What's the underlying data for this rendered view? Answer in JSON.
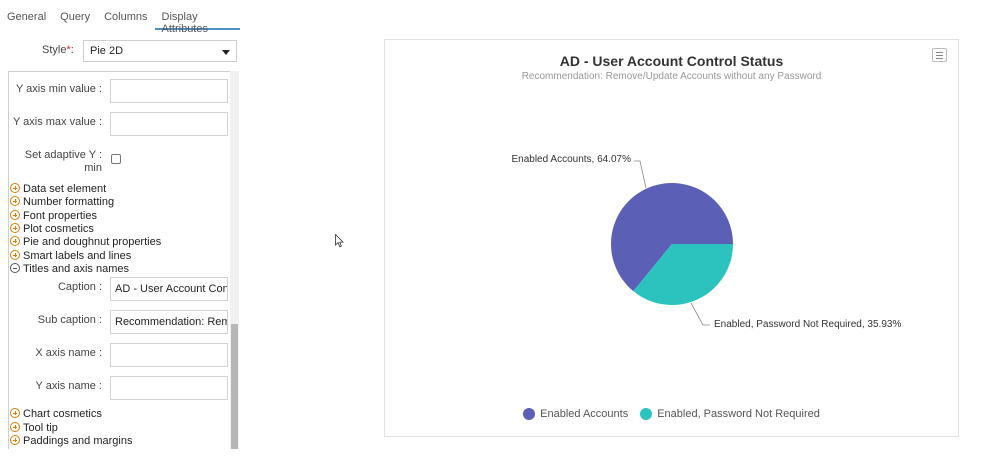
{
  "tabs": [
    {
      "label": "General",
      "active": false
    },
    {
      "label": "Query",
      "active": false
    },
    {
      "label": "Columns",
      "active": false
    },
    {
      "label": "Display Attributes",
      "active": true
    }
  ],
  "style": {
    "label": "Style",
    "required_mark": "*",
    "value": "Pie 2D"
  },
  "fields": {
    "y_min": {
      "label": "Y axis min value :",
      "value": ""
    },
    "y_max": {
      "label": "Y axis max value :",
      "value": ""
    },
    "adaptive_label_1": "Set adaptive Y :",
    "adaptive_label_2": "min",
    "caption": {
      "label": "Caption :",
      "value": "AD - User Account Cont"
    },
    "sub_caption": {
      "label": "Sub caption :",
      "value": "Recommendation: Rem"
    },
    "x_axis_name": {
      "label": "X axis name :",
      "value": ""
    },
    "y_axis_name": {
      "label": "Y axis name :",
      "value": ""
    }
  },
  "groups": {
    "data_set_element": "Data set element",
    "number_formatting": "Number formatting",
    "font_properties": "Font properties",
    "plot_cosmetics": "Plot cosmetics",
    "pie_doughnut": "Pie and doughnut properties",
    "smart_labels": "Smart labels and lines",
    "titles_axis": "Titles and axis names",
    "chart_cosmetics": "Chart cosmetics",
    "tool_tip": "Tool tip",
    "paddings": "Paddings and margins"
  },
  "chart": {
    "menu_icon": "hamburger-menu-icon"
  },
  "chart_data": {
    "type": "pie",
    "title": "AD - User Account Control Status",
    "subtitle": "Recommendation: Remove/Update Accounts without any Password",
    "slices": [
      {
        "name": "Enabled Accounts",
        "value": 64.07,
        "label": "Enabled Accounts, 64.07%",
        "color": "#5b5fb6"
      },
      {
        "name": "Enabled, Password Not Required",
        "value": 35.93,
        "label": "Enabled, Password Not Required, 35.93%",
        "color": "#2cc3bf"
      }
    ],
    "legend_position": "bottom"
  }
}
